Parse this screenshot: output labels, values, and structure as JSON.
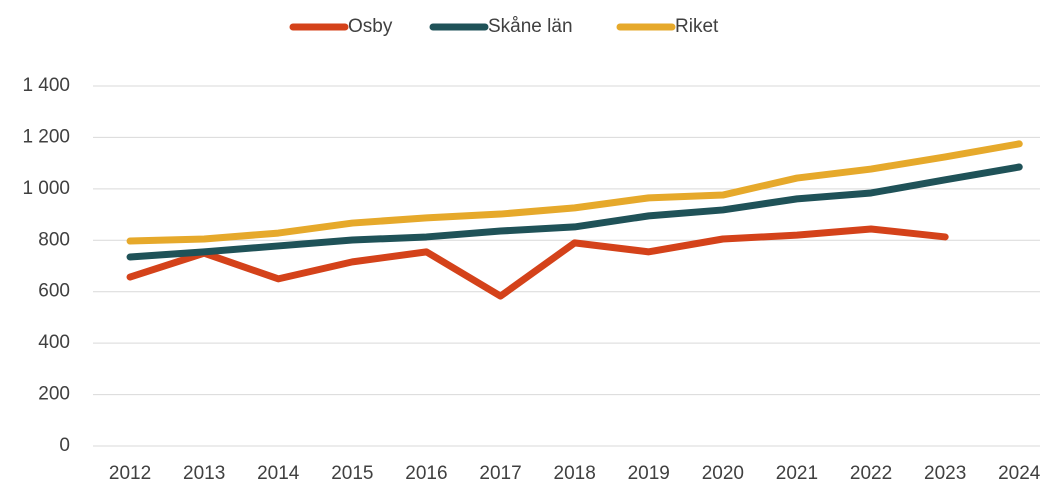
{
  "chart_data": {
    "type": "line",
    "categories": [
      "2012",
      "2013",
      "2014",
      "2015",
      "2016",
      "2017",
      "2018",
      "2019",
      "2020",
      "2021",
      "2022",
      "2023",
      "2024"
    ],
    "series": [
      {
        "name": "Osby",
        "color": "#d4421a",
        "values": [
          657,
          750,
          650,
          716,
          755,
          583,
          790,
          755,
          805,
          820,
          844,
          813,
          null
        ]
      },
      {
        "name": "Skåne län",
        "color": "#1f5258",
        "values": [
          735,
          755,
          778,
          801,
          813,
          836,
          852,
          895,
          918,
          961,
          984,
          1035,
          1085
        ]
      },
      {
        "name": "Riket",
        "color": "#e6a92b",
        "values": [
          797,
          805,
          828,
          867,
          887,
          902,
          926,
          965,
          976,
          1042,
          1077,
          1124,
          1175
        ]
      }
    ],
    "ylim": [
      0,
      1400
    ],
    "yticks": [
      0,
      200,
      400,
      600,
      800,
      {
        "value": 1000,
        "label": "1 000"
      },
      {
        "value": 1200,
        "label": "1 200"
      },
      {
        "value": 1400,
        "label": "1 400"
      }
    ],
    "grid": true,
    "legend": "top"
  }
}
